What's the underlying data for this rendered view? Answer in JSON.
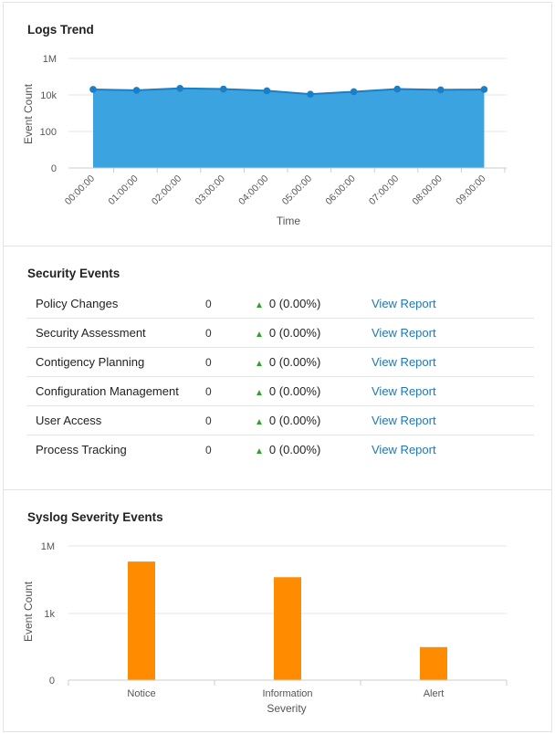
{
  "logs_trend": {
    "title": "Logs Trend",
    "ylabel": "Event Count",
    "xlabel": "Time",
    "yticks": [
      "1M",
      "10k",
      "100",
      "0"
    ]
  },
  "security_events": {
    "title": "Security Events",
    "link_label": "View Report",
    "rows": [
      {
        "name": "Policy Changes",
        "count": "0",
        "change": "0 (0.00%)"
      },
      {
        "name": "Security Assessment",
        "count": "0",
        "change": "0 (0.00%)"
      },
      {
        "name": "Contigency Planning",
        "count": "0",
        "change": "0 (0.00%)"
      },
      {
        "name": "Configuration Management",
        "count": "0",
        "change": "0 (0.00%)"
      },
      {
        "name": "User Access",
        "count": "0",
        "change": "0 (0.00%)"
      },
      {
        "name": "Process Tracking",
        "count": "0",
        "change": "0 (0.00%)"
      }
    ],
    "up_color": "#2aa52a",
    "link_color": "#1f77b4"
  },
  "syslog_severity": {
    "title": "Syslog Severity Events",
    "ylabel": "Event Count",
    "xlabel": "Severity",
    "yticks": [
      "1M",
      "1k",
      "0"
    ]
  },
  "chart_data": [
    {
      "type": "area",
      "title": "Logs Trend",
      "xlabel": "Time",
      "ylabel": "Event Count",
      "scale": "log",
      "categories": [
        "00:00:00",
        "01:00:00",
        "02:00:00",
        "03:00:00",
        "04:00:00",
        "05:00:00",
        "06:00:00",
        "07:00:00",
        "08:00:00",
        "09:00:00"
      ],
      "values": [
        20000,
        18000,
        23000,
        21000,
        17000,
        11000,
        15000,
        21000,
        19000,
        20000
      ],
      "color": "#3ba3df",
      "line_color": "#1a7fc6"
    },
    {
      "type": "bar",
      "title": "Syslog Severity Events",
      "xlabel": "Severity",
      "ylabel": "Event Count",
      "scale": "log",
      "categories": [
        "Notice",
        "Information",
        "Alert"
      ],
      "values": [
        200000,
        40000,
        30
      ],
      "color": "#ff8c00"
    }
  ]
}
